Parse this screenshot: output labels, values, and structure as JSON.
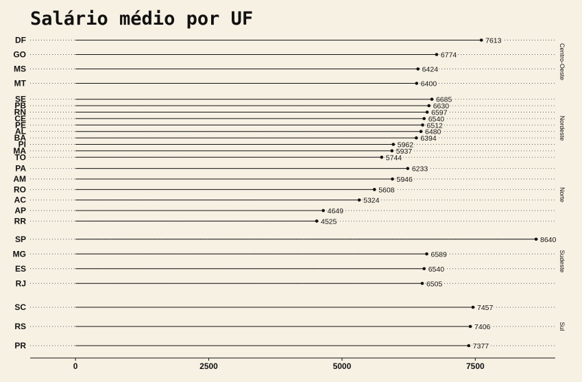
{
  "chart_data": {
    "type": "lollipop",
    "title": "Salário médio por UF",
    "xlabel": "",
    "ylabel": "",
    "xlim": [
      -850,
      9000
    ],
    "xticks": [
      0,
      2500,
      5000,
      7500
    ],
    "xtick_labels": [
      "0",
      "2500",
      "5000",
      "7500"
    ],
    "grid": "dotted horizontal lines per state",
    "facets": [
      {
        "region": "Centro-Oeste",
        "items": [
          {
            "uf": "DF",
            "value": 7613
          },
          {
            "uf": "GO",
            "value": 6774
          },
          {
            "uf": "MS",
            "value": 6424
          },
          {
            "uf": "MT",
            "value": 6400
          }
        ]
      },
      {
        "region": "Nordeste",
        "items": [
          {
            "uf": "SE",
            "value": 6685
          },
          {
            "uf": "PB",
            "value": 6630
          },
          {
            "uf": "RN",
            "value": 6597
          },
          {
            "uf": "CE",
            "value": 6540
          },
          {
            "uf": "PE",
            "value": 6512
          },
          {
            "uf": "AL",
            "value": 6480
          },
          {
            "uf": "BA",
            "value": 6394
          },
          {
            "uf": "PI",
            "value": 5962
          },
          {
            "uf": "MA",
            "value": 5937
          },
          {
            "uf": "TO",
            "value": 5744
          }
        ]
      },
      {
        "region": "Norte",
        "items": [
          {
            "uf": "PA",
            "value": 6233
          },
          {
            "uf": "AM",
            "value": 5946
          },
          {
            "uf": "RO",
            "value": 5608
          },
          {
            "uf": "AC",
            "value": 5324
          },
          {
            "uf": "AP",
            "value": 4649
          },
          {
            "uf": "RR",
            "value": 4525
          }
        ]
      },
      {
        "region": "Sudeste",
        "items": [
          {
            "uf": "SP",
            "value": 8640
          },
          {
            "uf": "MG",
            "value": 6589
          },
          {
            "uf": "ES",
            "value": 6540
          },
          {
            "uf": "RJ",
            "value": 6505
          }
        ]
      },
      {
        "region": "Sul",
        "items": [
          {
            "uf": "SC",
            "value": 7457
          },
          {
            "uf": "RS",
            "value": 7406
          },
          {
            "uf": "PR",
            "value": 7377
          }
        ]
      }
    ]
  }
}
